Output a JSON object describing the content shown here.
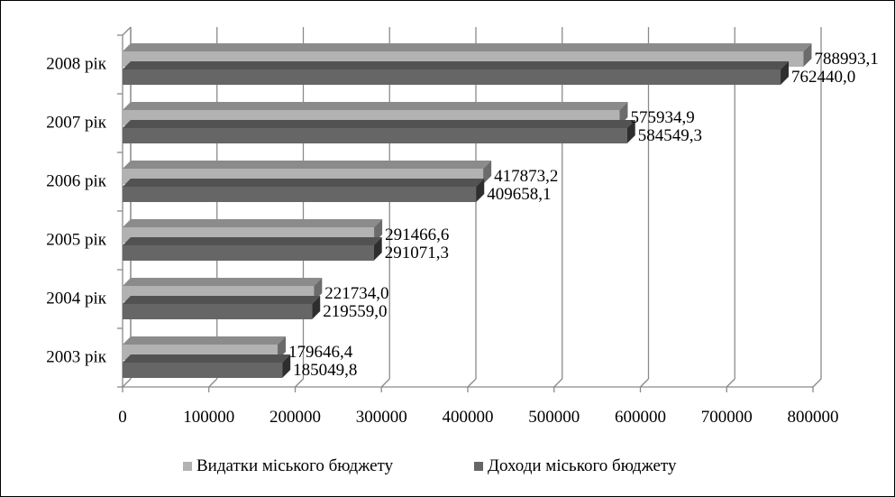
{
  "chart_data": {
    "type": "bar",
    "orientation": "horizontal",
    "style": "3d",
    "categories": [
      "2003 рік",
      "2004 рік",
      "2005 рік",
      "2006 рік",
      "2007 рік",
      "2008 рік"
    ],
    "series": [
      {
        "name": "Видатки міського бюджету",
        "values": [
          179646.4,
          221734.0,
          291466.6,
          417873.2,
          575934.9,
          788993.1
        ],
        "labels": [
          "179646,4",
          "221734,0",
          "291466,6",
          "417873,2",
          "575934,9",
          "788993,1"
        ],
        "color": "#b2b2b2"
      },
      {
        "name": "Доходи міського бюджету",
        "values": [
          185049.8,
          219559.0,
          291071.3,
          409658.1,
          584549.3,
          762440.0
        ],
        "labels": [
          "185049,8",
          "219559,0",
          "291071,3",
          "409658,1",
          "584549,3",
          "762440,0"
        ],
        "color": "#666666"
      }
    ],
    "xlim": [
      0,
      800000
    ],
    "xticks": [
      0,
      100000,
      200000,
      300000,
      400000,
      500000,
      600000,
      700000,
      800000
    ],
    "xtick_labels": [
      "0",
      "100000",
      "200000",
      "300000",
      "400000",
      "500000",
      "600000",
      "700000",
      "800000"
    ],
    "grid": true,
    "legend_position": "bottom"
  }
}
